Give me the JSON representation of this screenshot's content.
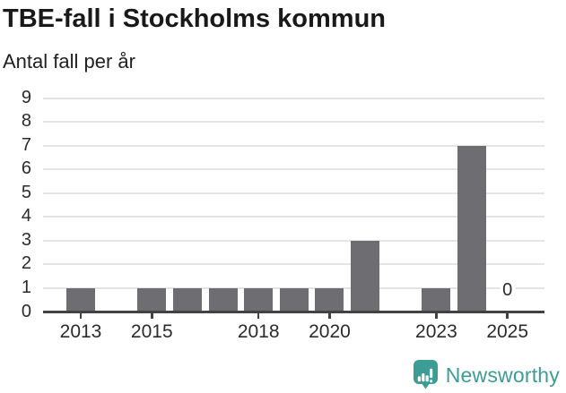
{
  "header": {
    "title": "TBE-fall i Stockholms kommun",
    "subtitle": "Antal fall per år"
  },
  "chart_data": {
    "type": "bar",
    "title": "TBE-fall i Stockholms kommun",
    "subtitle": "Antal fall per år",
    "xlabel": "",
    "ylabel": "Antal fall per år",
    "categories": [
      2013,
      2014,
      2015,
      2016,
      2017,
      2018,
      2019,
      2020,
      2021,
      2022,
      2023,
      2024,
      2025
    ],
    "values": [
      1,
      0,
      1,
      1,
      1,
      1,
      1,
      1,
      3,
      0,
      1,
      7,
      0
    ],
    "ylim": [
      0,
      9
    ],
    "yticks": [
      0,
      1,
      2,
      3,
      4,
      5,
      6,
      7,
      8,
      9
    ],
    "labeled_xticks": [
      2013,
      2015,
      2018,
      2020,
      2023,
      2025
    ],
    "grid": true,
    "legend": "none",
    "bar_color": "#6E6D72",
    "grid_color": "#E4E4E4",
    "axis_color": "#424242",
    "annotations": [
      {
        "x": 2025,
        "text": "0"
      }
    ]
  },
  "footer": {
    "brand_label": "Newsworthy",
    "brand_color": "#3C9D95",
    "icon": "newsworthy-logo-icon"
  }
}
